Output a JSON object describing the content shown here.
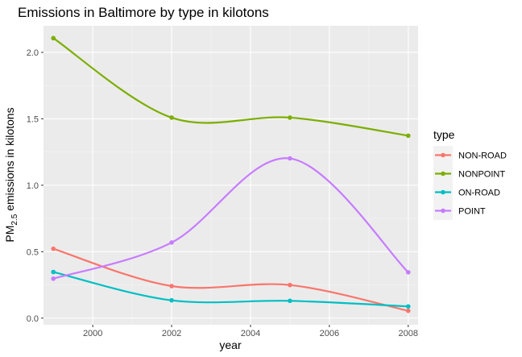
{
  "chart_data": {
    "type": "line",
    "title": "Emissions in Baltimore by type in kilotons",
    "xlabel": "year",
    "ylabel_main": "PM",
    "ylabel_sub": "2.5",
    "ylabel_rest": " emissions in kilotons",
    "x": [
      1999,
      2002,
      2005,
      2008
    ],
    "xlim": [
      1998.75,
      2008.25
    ],
    "ylim": [
      -0.05,
      2.2
    ],
    "x_ticks": [
      2000,
      2002,
      2004,
      2006,
      2008
    ],
    "y_ticks": [
      0.0,
      0.5,
      1.0,
      1.5,
      2.0
    ],
    "x_tick_labels": [
      "2000",
      "2002",
      "2004",
      "2006",
      "2008"
    ],
    "y_tick_labels": [
      "0.0",
      "0.5",
      "1.0",
      "1.5",
      "2.0"
    ],
    "grid": true,
    "legend_title": "type",
    "legend_position": "right",
    "series": [
      {
        "name": "NON-ROAD",
        "color": "#F8766D",
        "values": [
          0.522,
          0.241,
          0.249,
          0.055
        ]
      },
      {
        "name": "NONPOINT",
        "color": "#7CAE00",
        "values": [
          2.107,
          1.509,
          1.509,
          1.373
        ]
      },
      {
        "name": "ON-ROAD",
        "color": "#00BFC4",
        "values": [
          0.347,
          0.134,
          0.13,
          0.088
        ]
      },
      {
        "name": "POINT",
        "color": "#C77CFF",
        "values": [
          0.297,
          0.569,
          1.202,
          0.345
        ]
      }
    ]
  }
}
